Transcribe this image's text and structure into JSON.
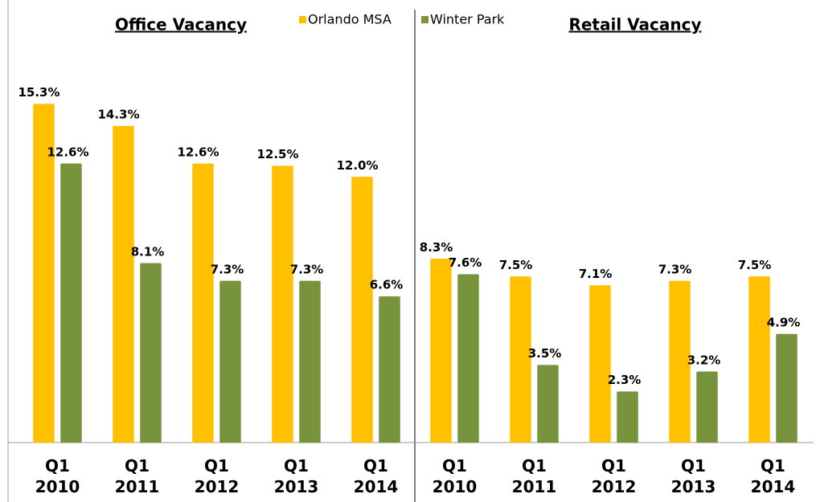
{
  "chart_data": [
    {
      "type": "bar",
      "title": "Office Vacancy",
      "categories": [
        "Q1 2010",
        "Q1 2011",
        "Q1 2012",
        "Q1 2013",
        "Q1 2014"
      ],
      "series": [
        {
          "name": "Orlando MSA",
          "color": "#ffc000",
          "values": [
            15.3,
            14.3,
            12.6,
            12.5,
            12.0
          ],
          "value_labels": [
            "15.3%",
            "14.3%",
            "12.6%",
            "12.5%",
            "12.0%"
          ]
        },
        {
          "name": "Winter Park",
          "color": "#77933c",
          "values": [
            12.6,
            8.1,
            7.3,
            7.3,
            6.6
          ],
          "value_labels": [
            "12.6%",
            "8.1%",
            "7.3%",
            "7.3%",
            "6.6%"
          ]
        }
      ],
      "ylim": [
        0,
        20
      ]
    },
    {
      "type": "bar",
      "title": "Retail Vacancy",
      "categories": [
        "Q1 2010",
        "Q1 2011",
        "Q1 2012",
        "Q1 2013",
        "Q1 2014"
      ],
      "series": [
        {
          "color": "#ffc000",
          "values": [
            8.3,
            7.5,
            7.1,
            7.3,
            7.5
          ],
          "value_labels": [
            "8.3%",
            "7.5%",
            "7.1%",
            "7.3%",
            "7.5%"
          ]
        },
        {
          "color": "#77933c",
          "values": [
            7.6,
            3.5,
            2.3,
            3.2,
            4.9
          ],
          "value_labels": [
            "7.6%",
            "3.5%",
            "2.3%",
            "3.2%",
            "4.9%"
          ]
        }
      ],
      "ylim": [
        0,
        20
      ]
    }
  ]
}
